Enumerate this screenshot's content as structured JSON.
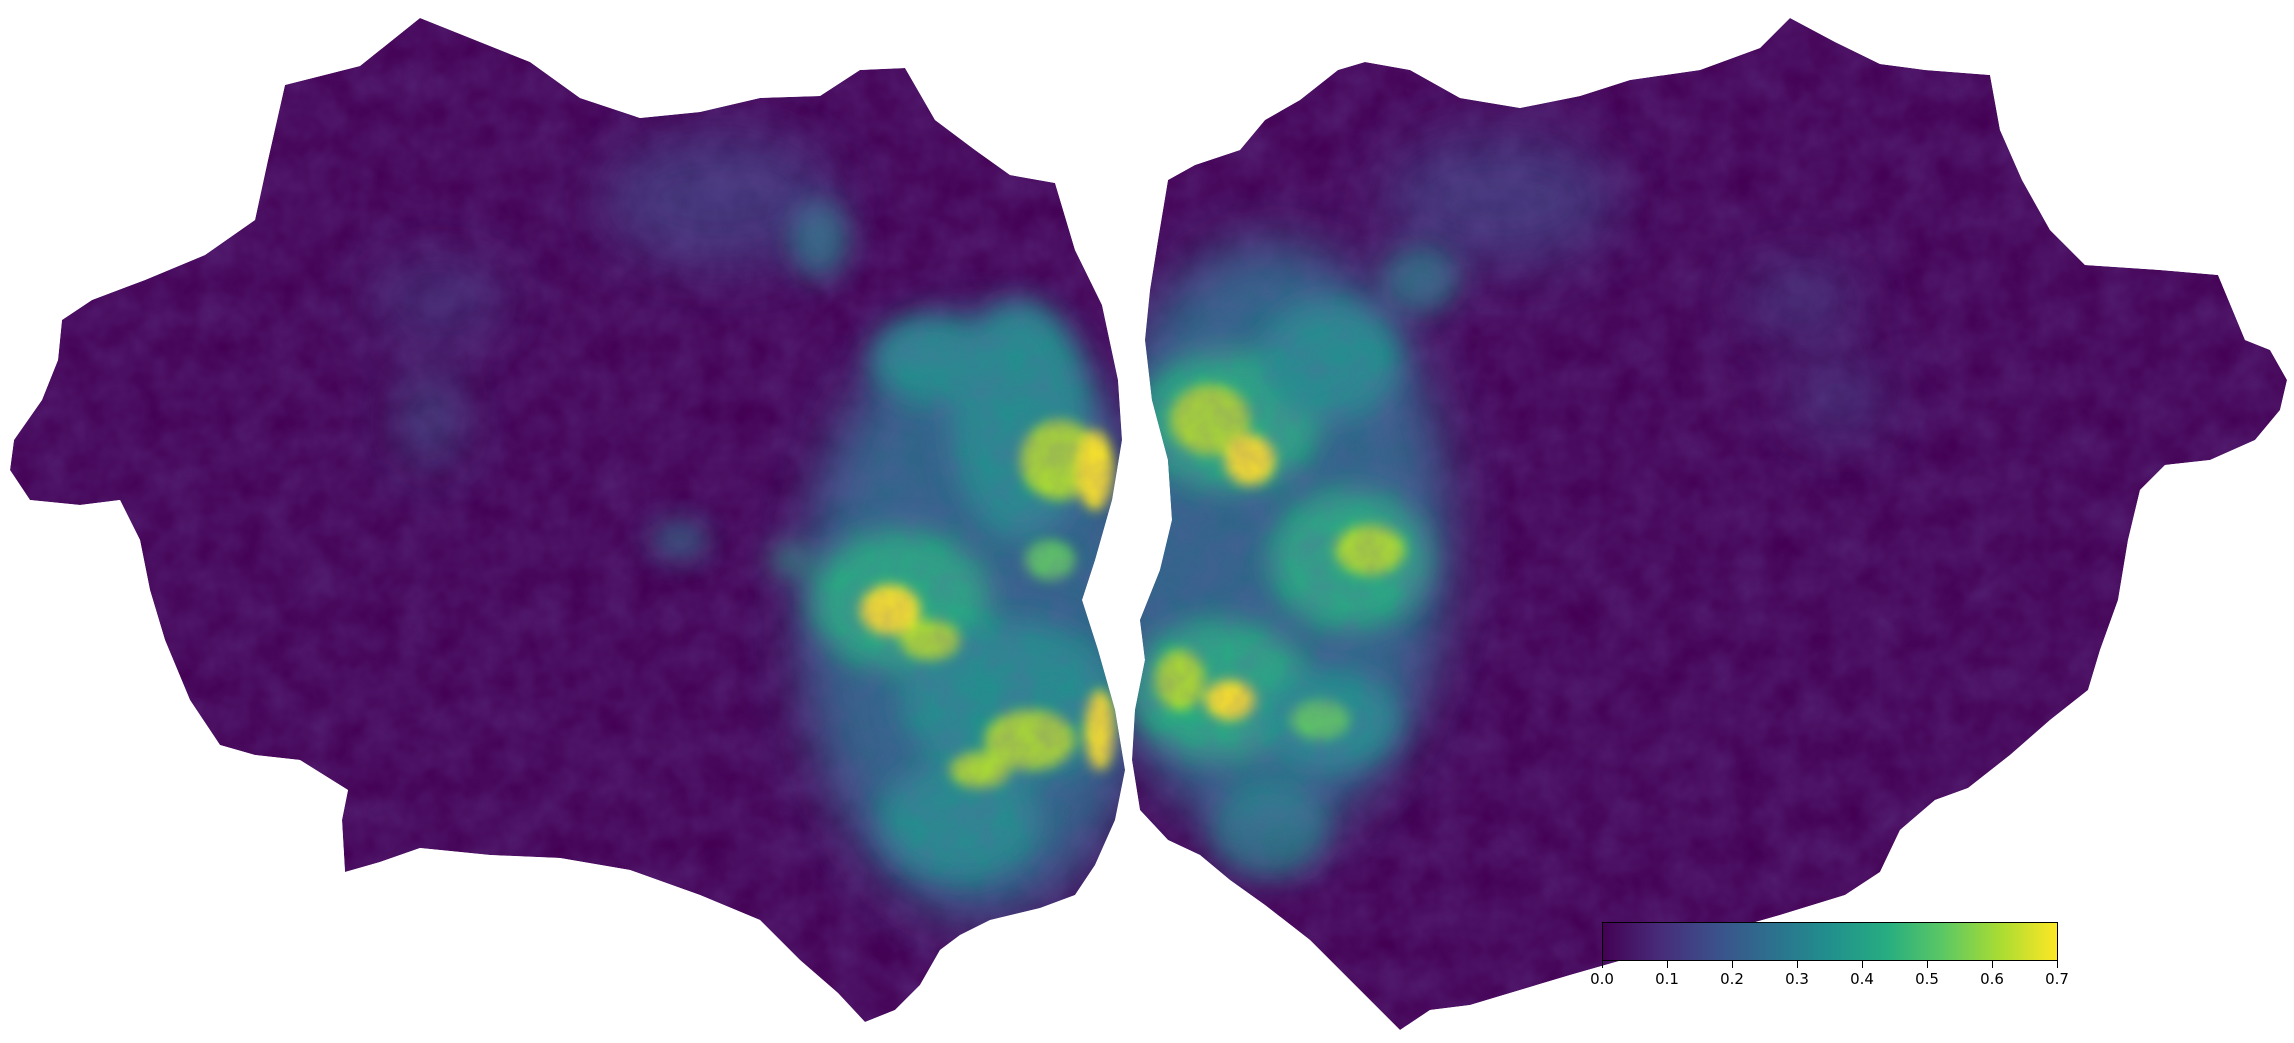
{
  "colormap": {
    "name": "viridis",
    "stops": [
      "#440154",
      "#472c7a",
      "#3b518b",
      "#2c718e",
      "#21908d",
      "#27ad81",
      "#5cc863",
      "#aadc32",
      "#fde725"
    ]
  },
  "colorbar": {
    "min": 0.0,
    "max": 0.7,
    "ticks": [
      "0.0",
      "0.1",
      "0.2",
      "0.3",
      "0.4",
      "0.5",
      "0.6",
      "0.7"
    ]
  },
  "hemispheres": [
    {
      "name": "left-hemisphere"
    },
    {
      "name": "right-hemisphere"
    }
  ]
}
